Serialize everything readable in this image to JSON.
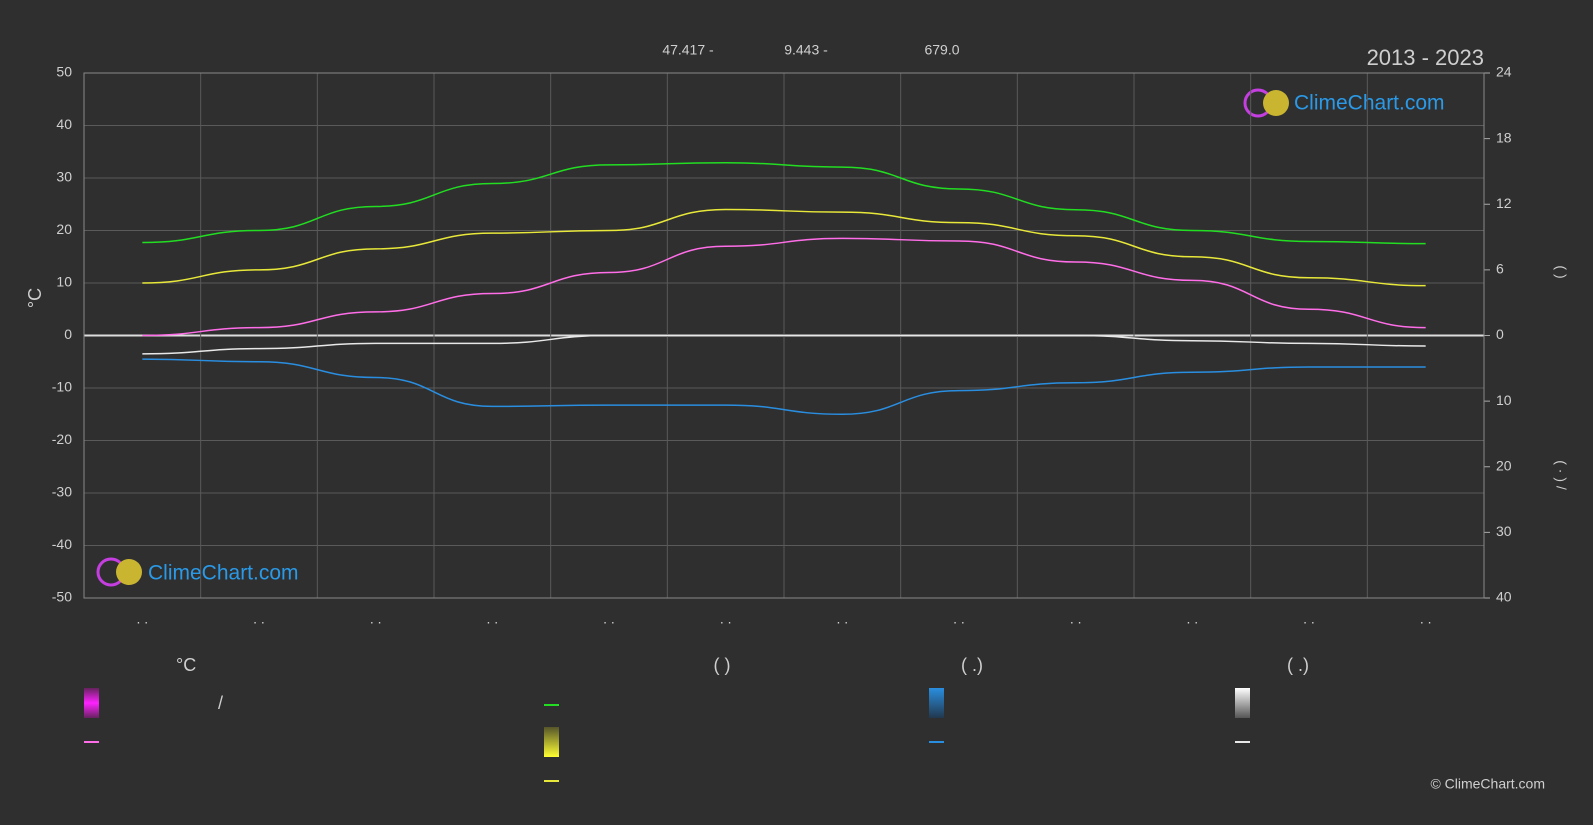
{
  "chart_data": {
    "type": "line",
    "title": "2013 - 2023",
    "info": [
      "47.417 -",
      "9.443 -",
      "679.0"
    ],
    "y_label": "°C",
    "y2_label": "(        )",
    "y3_label": "(  ·  )    /",
    "categories": [
      ". .",
      ". .",
      ". .",
      ". .",
      ". .",
      ". .",
      ". .",
      ". .",
      ". .",
      ". .",
      ". .",
      ". ."
    ],
    "ylim": [
      -50,
      50
    ],
    "yticks": [
      -50,
      -40,
      -30,
      -20,
      -10,
      0,
      10,
      20,
      30,
      40,
      50
    ],
    "y2lim": [
      0,
      24
    ],
    "y2ticks": [
      0,
      6,
      12,
      18,
      24
    ],
    "y3lim": [
      0,
      40
    ],
    "y3ticks": [
      10,
      20,
      30,
      40
    ],
    "grid": true,
    "series": [
      {
        "color": "#22dd22",
        "axis": "y2",
        "values": [
          8.5,
          9.6,
          11.8,
          13.9,
          15.6,
          15.8,
          15.4,
          13.4,
          11.5,
          9.6,
          8.6,
          8.4
        ]
      },
      {
        "color": "#e8e83a",
        "values": [
          10,
          12.5,
          16.5,
          19.5,
          20,
          24,
          23.5,
          21.5,
          19,
          15,
          11,
          9.5
        ]
      },
      {
        "color": "#ff6ee8",
        "values": [
          0,
          1.5,
          4.5,
          8,
          12,
          17,
          18.5,
          18,
          14,
          10.5,
          5,
          1.5
        ]
      },
      {
        "color": "#2a8ee0",
        "axis": "y3",
        "values": [
          3.6,
          4,
          6.4,
          10.8,
          10.6,
          10.6,
          12,
          8.4,
          7.2,
          5.6,
          4.8,
          4.8
        ]
      },
      {
        "color": "#e8e8e8",
        "axis": "y3",
        "values": [
          2.8,
          2,
          1.2,
          1.2,
          0,
          0,
          0,
          0,
          0,
          0.8,
          1.2,
          1.6
        ]
      }
    ]
  },
  "legend": {
    "headers": [
      "°C",
      "(          )",
      "(   .)",
      "(   .)"
    ],
    "separator": "/"
  },
  "logo": "ClimeChart.com",
  "copyright": "© ClimeChart.com"
}
